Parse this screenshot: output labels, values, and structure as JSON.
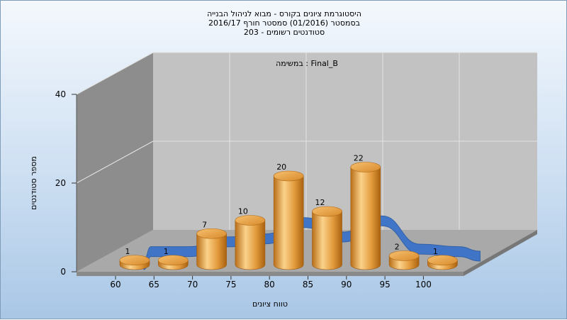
{
  "chart_data": {
    "type": "bar",
    "title_lines": [
      "היסטוגרמת ציונים בקורס - מבוא לניהול הבנייה",
      "בסמסטר  (01/2016)  סמסטר חורף 2016/17",
      "סטודנטים רשומים - 203"
    ],
    "annotation": "במשימה : Final_B",
    "xlabel": "טווח ציונים",
    "ylabel": "מספר סטודנטים",
    "ylim": [
      0,
      40
    ],
    "y_ticks": [
      "0",
      "20",
      "40"
    ],
    "x_ticks": [
      "60",
      "65",
      "70",
      "75",
      "80",
      "85",
      "90",
      "95",
      "100"
    ],
    "categories": [
      "60",
      "65",
      "70",
      "75",
      "80",
      "85",
      "90",
      "95",
      "100"
    ],
    "values": [
      1,
      1,
      7,
      10,
      20,
      12,
      22,
      2,
      1
    ],
    "grid": true,
    "style": "3d-cylinder",
    "colors": {
      "bar": "#e8a040",
      "bar_dark": "#b86e18",
      "bar_light": "#fbd28a",
      "curve": "#3a72c8",
      "wall": "#c0c0c0",
      "side_wall": "#8c8c8c"
    }
  }
}
